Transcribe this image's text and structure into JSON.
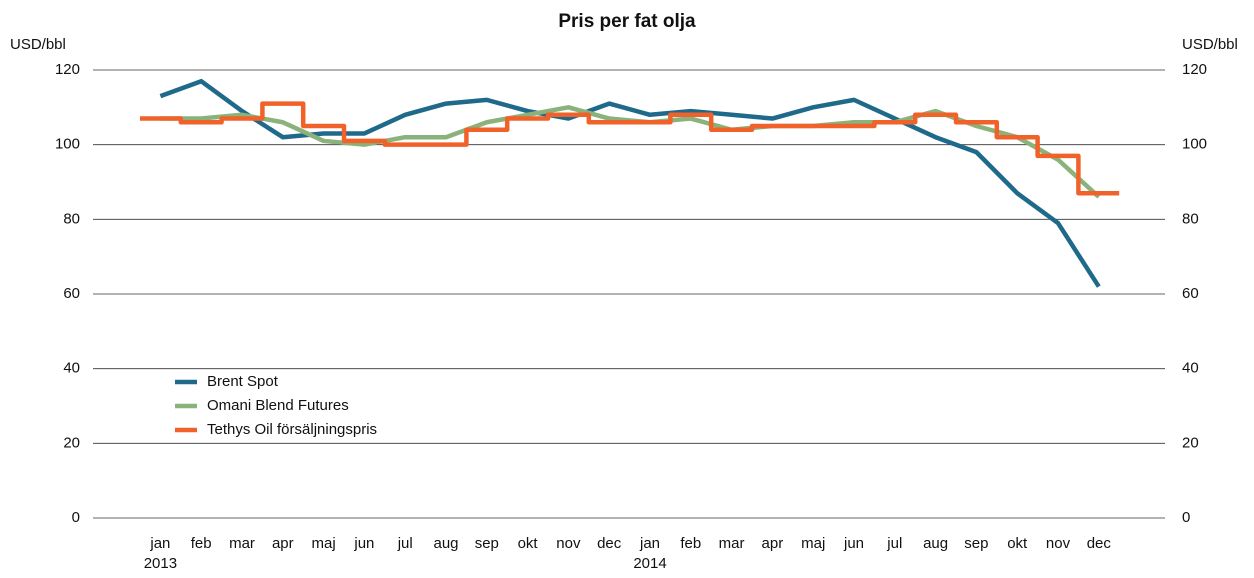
{
  "chart_data": {
    "type": "line",
    "title": "Pris per fat olja",
    "y_label": "USD/bbl",
    "y2_label": "USD/bbl",
    "categories": [
      "jan",
      "feb",
      "mar",
      "apr",
      "maj",
      "jun",
      "jul",
      "aug",
      "sep",
      "okt",
      "nov",
      "dec",
      "jan",
      "feb",
      "mar",
      "apr",
      "maj",
      "jun",
      "jul",
      "aug",
      "sep",
      "okt",
      "nov",
      "dec"
    ],
    "category_groups": [
      "2013",
      "2014"
    ],
    "series": [
      {
        "name": "Brent Spot",
        "color": "#1f6a8a",
        "values": [
          113,
          117,
          109,
          102,
          103,
          103,
          108,
          111,
          112,
          109,
          107,
          111,
          108,
          109,
          108,
          107,
          110,
          112,
          107,
          102,
          98,
          87,
          79,
          62
        ]
      },
      {
        "name": "Omani Blend Futures",
        "color": "#8ab27a",
        "values": [
          107,
          107,
          108,
          106,
          101,
          100,
          102,
          102,
          106,
          108,
          110,
          107,
          106,
          107,
          104,
          105,
          105,
          106,
          106,
          109,
          105,
          102,
          96,
          86
        ]
      },
      {
        "name": "Tethys Oil försäljningspris",
        "color": "#f0622a",
        "step": true,
        "values": [
          107,
          106,
          107,
          111,
          105,
          101,
          100,
          100,
          104,
          107,
          108,
          106,
          106,
          108,
          104,
          105,
          105,
          105,
          106,
          108,
          106,
          102,
          97,
          87
        ]
      }
    ],
    "ylim": [
      0,
      120
    ],
    "yticks": [
      0,
      20,
      40,
      60,
      80,
      100,
      120
    ],
    "y2lim": [
      0,
      120
    ],
    "y2ticks": [
      0,
      20,
      40,
      60,
      80,
      100,
      120
    ],
    "grid": true,
    "legend": "bottom-left"
  }
}
